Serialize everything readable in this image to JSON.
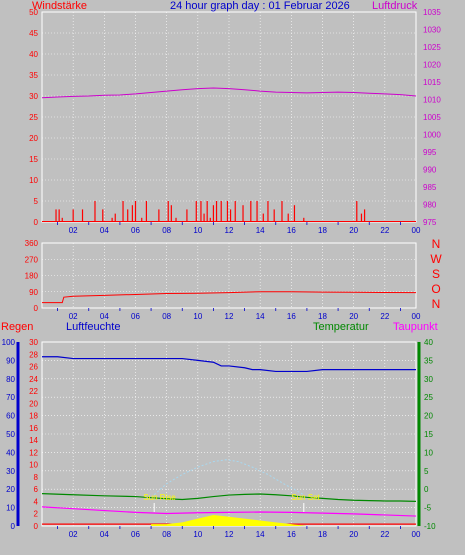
{
  "chart_data": [
    {
      "type": "line",
      "title": "24 hour graph day : 01 Februar 2026",
      "left_label": "Windstärke",
      "right_label": "Luftdruck",
      "left_axis": {
        "min": 0,
        "max": 50,
        "ticks": [
          0,
          5,
          10,
          15,
          20,
          25,
          30,
          35,
          40,
          45,
          50
        ]
      },
      "right_axis": {
        "min": 975,
        "max": 1035,
        "ticks": [
          975,
          980,
          985,
          990,
          995,
          1000,
          1005,
          1010,
          1015,
          1020,
          1025,
          1030,
          1035
        ]
      },
      "x_ticks": [
        "02",
        "04",
        "06",
        "08",
        "10",
        "12",
        "14",
        "16",
        "18",
        "20",
        "22",
        "00"
      ],
      "series": [
        {
          "name": "Luftdruck",
          "axis": "right",
          "color": "#cc00cc",
          "x": [
            0,
            1,
            2,
            3,
            4,
            5,
            6,
            7,
            8,
            9,
            10,
            11,
            12,
            13,
            14,
            15,
            16,
            17,
            18,
            19,
            20,
            21,
            22,
            23,
            24
          ],
          "values": [
            1010.5,
            1010.7,
            1010.9,
            1011.0,
            1011.2,
            1011.3,
            1011.6,
            1012.0,
            1012.4,
            1012.8,
            1013.1,
            1013.3,
            1013.1,
            1012.8,
            1012.4,
            1012.1,
            1012.0,
            1011.9,
            1012.0,
            1012.1,
            1012.0,
            1011.8,
            1011.6,
            1011.4,
            1011.0
          ]
        },
        {
          "name": "Windstärke",
          "axis": "left",
          "color": "#ff0000",
          "style": "bars",
          "x": [
            0.9,
            1.1,
            1.3,
            2.0,
            2.6,
            3.4,
            3.9,
            4.5,
            4.7,
            5.2,
            5.5,
            5.8,
            6.0,
            6.4,
            6.7,
            7.5,
            8.1,
            8.3,
            8.6,
            9.3,
            9.9,
            10.2,
            10.4,
            10.6,
            10.8,
            11.0,
            11.2,
            11.5,
            11.9,
            12.1,
            12.4,
            12.9,
            13.4,
            13.8,
            14.2,
            14.5,
            14.9,
            15.4,
            15.8,
            16.2,
            16.8,
            20.2,
            20.5,
            20.7
          ],
          "values": [
            3,
            3,
            1,
            3,
            3,
            5,
            3,
            1,
            2,
            5,
            3,
            4,
            5,
            1,
            5,
            3,
            5,
            4,
            1,
            3,
            5,
            5,
            2,
            5,
            1,
            4,
            5,
            5,
            5,
            3,
            5,
            4,
            5,
            5,
            2,
            5,
            3,
            5,
            2,
            4,
            1,
            5,
            2,
            3
          ]
        }
      ]
    },
    {
      "type": "line",
      "left_axis": {
        "min": 0,
        "max": 360,
        "ticks": [
          0,
          90,
          180,
          270,
          360
        ]
      },
      "right_labels": [
        "N",
        "W",
        "S",
        "O",
        "N"
      ],
      "x_ticks": [
        "02",
        "04",
        "06",
        "08",
        "10",
        "12",
        "14",
        "16",
        "18",
        "20",
        "22",
        "00"
      ],
      "series": [
        {
          "name": "Windrichtung",
          "color": "#ff0000",
          "x": [
            0,
            1.3,
            1.4,
            2,
            4,
            6,
            8,
            10,
            12,
            14,
            16,
            18,
            20,
            22,
            24
          ],
          "values": [
            30,
            30,
            60,
            65,
            70,
            75,
            80,
            82,
            85,
            90,
            90,
            88,
            87,
            86,
            85
          ]
        }
      ]
    },
    {
      "type": "line",
      "labels": {
        "regen": "Regen",
        "luftfeuchte": "Luftfeuchte",
        "temperatur": "Temperatur",
        "taupunkt": "Taupunkt"
      },
      "luftfeuchte_axis": {
        "min": 0,
        "max": 100,
        "ticks": [
          0,
          10,
          20,
          30,
          40,
          50,
          60,
          70,
          80,
          90,
          100
        ]
      },
      "regen_axis": {
        "min": 0,
        "max": 30,
        "ticks": [
          0,
          2,
          4,
          6,
          8,
          10,
          12,
          14,
          16,
          18,
          20,
          22,
          24,
          26,
          28,
          30
        ]
      },
      "temp_axis": {
        "min": -10,
        "max": 40,
        "ticks": [
          -10,
          -5,
          0,
          5,
          10,
          15,
          20,
          25,
          30,
          35,
          40
        ]
      },
      "x_ticks": [
        "02",
        "04",
        "06",
        "08",
        "10",
        "12",
        "14",
        "16",
        "18",
        "20",
        "22",
        "00"
      ],
      "annotations": {
        "sunrise": "Sun Rise",
        "sunset": "Sun Set"
      },
      "series": [
        {
          "name": "Luftfeuchte",
          "axis": "luftfeuchte",
          "color": "#0000cc",
          "x": [
            0,
            1,
            2,
            4,
            6,
            8,
            9,
            10,
            11,
            11.5,
            12,
            13,
            13.5,
            14,
            15,
            16,
            17,
            18,
            19,
            20,
            21,
            22,
            23,
            24
          ],
          "values": [
            92,
            92,
            91,
            91,
            91,
            91,
            91,
            90,
            89,
            87,
            87,
            86,
            85,
            85,
            84,
            84,
            84,
            85,
            85,
            85,
            85,
            85,
            85,
            85
          ]
        },
        {
          "name": "Temperatur",
          "axis": "temp",
          "color": "#008800",
          "x": [
            0,
            2,
            4,
            6,
            7,
            8,
            9,
            10,
            11,
            12,
            13,
            14,
            15,
            16,
            17,
            18,
            19,
            20,
            21,
            22,
            23,
            24
          ],
          "values": [
            -1.2,
            -1.5,
            -1.8,
            -2.0,
            -2.3,
            -2.6,
            -2.8,
            -2.5,
            -2.0,
            -1.6,
            -1.4,
            -1.3,
            -1.5,
            -1.8,
            -2.2,
            -2.5,
            -2.8,
            -3.0,
            -3.1,
            -3.2,
            -3.2,
            -3.3
          ]
        },
        {
          "name": "Taupunkt",
          "axis": "temp",
          "color": "#ff00ff",
          "x": [
            0,
            2,
            4,
            6,
            8,
            10,
            12,
            14,
            16,
            18,
            20,
            22,
            24
          ],
          "values": [
            -4.8,
            -5.3,
            -5.8,
            -6.3,
            -6.6,
            -6.4,
            -6.3,
            -6.2,
            -6.3,
            -6.5,
            -6.7,
            -7.0,
            -7.3
          ]
        },
        {
          "name": "Regen",
          "axis": "regen",
          "color": "#ff0000",
          "x": [
            0,
            6,
            12,
            18,
            24
          ],
          "values": [
            0.3,
            0.3,
            0.3,
            0.3,
            0.3
          ]
        },
        {
          "name": "Sonne",
          "axis": "luftfeuchte",
          "color": "#ffff00",
          "x": [
            7,
            8,
            9,
            10,
            11,
            12,
            13,
            14,
            15,
            16,
            17
          ],
          "values": [
            1,
            1,
            2,
            4,
            6,
            5,
            4,
            3,
            2,
            1,
            0
          ]
        },
        {
          "name": "Sonnenbahn",
          "axis": "luftfeuchte",
          "color": "#a8d8f0",
          "x": [
            7.2,
            8,
            9,
            10,
            11,
            11.8,
            12.6,
            13.5,
            14.5,
            15.5,
            16.8
          ],
          "values": [
            17,
            23,
            28,
            32,
            35,
            36,
            35,
            32,
            28,
            23,
            17
          ]
        }
      ]
    }
  ]
}
